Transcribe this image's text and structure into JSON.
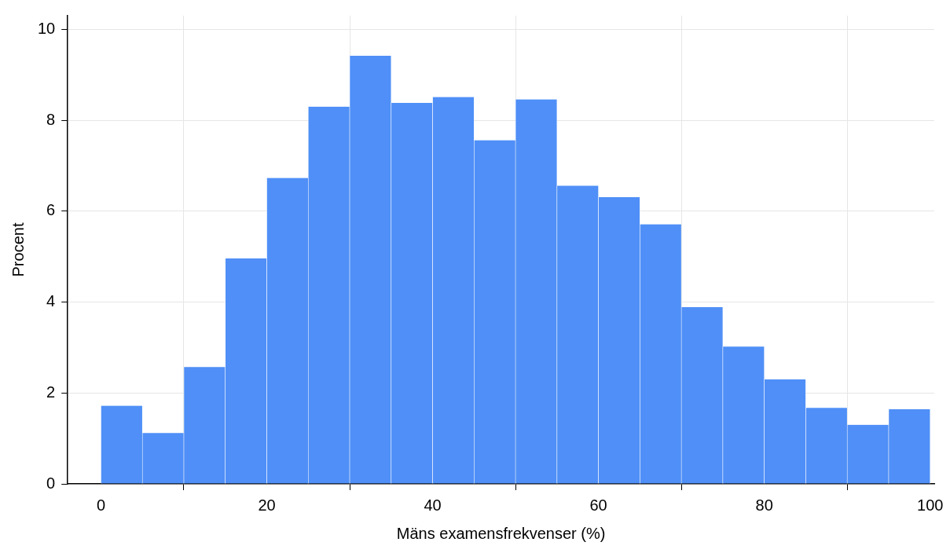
{
  "chart_data": {
    "type": "histogram",
    "xlabel": "Mäns examensfrekvenser (%)",
    "ylabel": "Procent",
    "bins": [
      0,
      5,
      10,
      15,
      20,
      25,
      30,
      35,
      40,
      45,
      50,
      55,
      60,
      65,
      70,
      75,
      80,
      85,
      90,
      95,
      100
    ],
    "values": [
      1.72,
      1.12,
      2.57,
      4.96,
      6.73,
      8.3,
      9.42,
      8.38,
      8.51,
      7.56,
      8.46,
      6.56,
      6.31,
      5.71,
      3.89,
      3.02,
      2.3,
      1.67,
      1.3,
      1.64
    ],
    "color": "#4f8ff7",
    "xlim": [
      -4,
      100.5
    ],
    "xticks": [
      0,
      20,
      40,
      60,
      80,
      100
    ],
    "ylim": [
      0,
      10.3
    ],
    "yticks": [
      0,
      2,
      4,
      6,
      8,
      10
    ],
    "grid": true,
    "legend": false
  }
}
